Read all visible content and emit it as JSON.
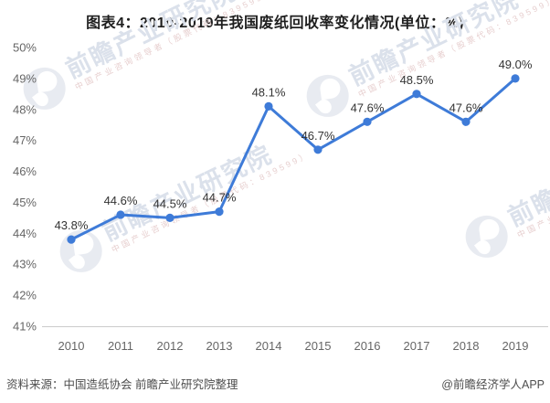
{
  "title": "图表4：2010-2019年我国废纸回收率变化情况(单位：%)",
  "footer": {
    "source": "资料来源：中国造纸协会 前瞻产业研究院整理",
    "credit": "@前瞻经济学人APP"
  },
  "watermark": {
    "brand": "前瞻产业研究院",
    "tagline": "中国产业咨询领导者（股票代码：839599）"
  },
  "chart_data": {
    "type": "line",
    "title": "图表4：2010-2019年我国废纸回收率变化情况(单位：%)",
    "categories": [
      "2010",
      "2011",
      "2012",
      "2013",
      "2014",
      "2015",
      "2016",
      "2017",
      "2018",
      "2019"
    ],
    "values": [
      43.8,
      44.6,
      44.5,
      44.7,
      48.1,
      46.7,
      47.6,
      48.5,
      47.6,
      49.0
    ],
    "point_labels": [
      "43.8%",
      "44.6%",
      "44.5%",
      "44.7%",
      "48.1%",
      "46.7%",
      "47.6%",
      "48.5%",
      "47.6%",
      "49.0%"
    ],
    "xlabel": "",
    "ylabel": "",
    "ylim": [
      41,
      50
    ],
    "ytick_step": 1,
    "ytick_suffix": "%",
    "grid": false,
    "legend": "none",
    "line_color": "#3E7BD8",
    "label_color": "#333333",
    "axis_text_color": "#666666",
    "axis_line_color": "#cccccc"
  }
}
